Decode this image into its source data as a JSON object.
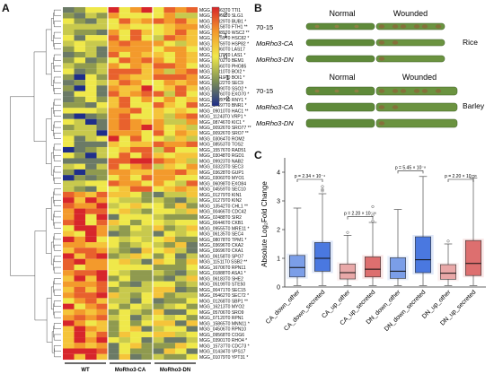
{
  "panels": {
    "a": "A",
    "b": "B",
    "c": "C"
  },
  "heatmap": {
    "colorbar_ticks": [
      "2",
      "1",
      "0",
      "-1",
      "-2"
    ],
    "groups": [
      "WT",
      "MoRho3-CA",
      "MoRho3-DN"
    ],
    "genes": [
      "MGG_08863T0 TTI1",
      "MGG_01466T0 SLG1",
      "MGG_14329T0 BUB1 *",
      "MGG_02158T0 FTH1 **",
      "MGG_15989T0 WSC2 **",
      "MGG_06759T0 HSC82 *",
      "MGG_06759T0 HSP82 *",
      "MGG_02860T0 LAS17",
      "MGG_06370T0 LAS1 *",
      "MGG_01702T0 BEM1",
      "MGG_04660T0 PHO85",
      "MGG_07310T0 BOI2 *",
      "MGG_07310T0 BOI1 *",
      "MGG_00522T0 SEC9",
      "MGG_04090T0 SSO2 *",
      "MGG_01760T0 EXO70 *",
      "MGG_17697T0 RNY1 *",
      "MGG_17697T0 BNR1 *",
      "MGG_09010T0 HAC1 **",
      "MGG_11243T0 VRP1 *",
      "MGG_08746T0 KIC1 *",
      "MGG_00926T0 SRO77 **",
      "MGG_00926T0 SRO7 **",
      "MGG_03064T0 ROM2",
      "MGG_08553T0 TOS2",
      "MGG_15576T0 RAD51",
      "MGG_03048T0 RGD1",
      "MGG_09923T0 NAB2",
      "MGG_03323T0 SEC3",
      "MGG_03628T0 GUP1",
      "MGG_03060T0 MYO1",
      "MGG_06098T0 EXO84",
      "MGG_04559T0 SEC10",
      "MGG_01279T0 KIN1",
      "MGG_01279T0 KIN2",
      "MGG_13542T0 CHL1 **",
      "MGG_00466T0 CDC42",
      "MGG_02488T0 SIR2",
      "MGG_00446T0 CKB1",
      "MGG_09555T0 MRE11 *",
      "MGG_06135T0 SEC4",
      "MGG_08078T0 TPM1 *",
      "MGG_03696T0 CKA2",
      "MGG_03696T0 CKA1",
      "MGG_06158T0 SPO7",
      "MGG_11511T0 SSB2 **",
      "MGG_16706T0 RPN11",
      "MGG_01888T0 ASA1 *",
      "MGG_06183T0 SHE2",
      "MGG_05199T0 STE50",
      "MGG_00471T0 SEC15",
      "MGG_05462T0 SEC72 *",
      "MGG_01268T0 SBP1 **",
      "MGG_16213T0 MYO2",
      "MGG_05706T0 SRO9",
      "MGG_07120T0 RPN1",
      "MGG_15865T0 MNN11 *",
      "MGG_04506T0 RPN10",
      "MGG_09568T0 COG6",
      "MGG_03901T0 RHO4 *",
      "MGG_15737T0 CDC73 *",
      "MGG_01434T0 VPS17",
      "MGG_01079T0 YPT31 *"
    ]
  },
  "leaves": {
    "col_normal": "Normal",
    "col_wounded": "Wounded",
    "rice": {
      "strains": [
        "70-15",
        "MoRho3-CA",
        "MoRho3-DN"
      ],
      "host": "Rice"
    },
    "barley": {
      "strains": [
        "70-15",
        "MoRho3-CA",
        "MoRho3-DN"
      ],
      "host": "Barley"
    }
  },
  "chart_data": {
    "type": "box",
    "ylabel": "Absolute Log₂Fold Change",
    "ylim": [
      0,
      4.5
    ],
    "yticks": [
      0,
      1,
      2,
      3,
      4
    ],
    "categories": [
      "CA_down_other",
      "CA_down_secreted",
      "CA_up_other",
      "CA_up_secreted",
      "DN_down_other",
      "DN_down_secreted",
      "DN_up_other",
      "DN_up_secreted"
    ],
    "colors": [
      "#7b9ee8",
      "#4a78e0",
      "#e9a8a8",
      "#dd6f6f",
      "#7b9ee8",
      "#4a78e0",
      "#e9a8a8",
      "#dd6f6f"
    ],
    "boxes": [
      {
        "whislo": 0.05,
        "q1": 0.35,
        "med": 0.68,
        "q3": 1.1,
        "whishi": 2.75,
        "fliers": []
      },
      {
        "whislo": 0.05,
        "q1": 0.55,
        "med": 1.0,
        "q3": 1.55,
        "whishi": 3.25,
        "fliers": [
          3.35,
          3.4,
          3.5
        ]
      },
      {
        "whislo": 0.05,
        "q1": 0.28,
        "med": 0.5,
        "q3": 0.8,
        "whishi": 1.8,
        "fliers": [
          1.9
        ]
      },
      {
        "whislo": 0.05,
        "q1": 0.35,
        "med": 0.62,
        "q3": 1.05,
        "whishi": 2.25,
        "fliers": [
          2.3,
          2.5,
          2.8
        ]
      },
      {
        "whislo": 0.05,
        "q1": 0.3,
        "med": 0.55,
        "q3": 1.02,
        "whishi": 2.7,
        "fliers": []
      },
      {
        "whislo": 0.05,
        "q1": 0.5,
        "med": 0.95,
        "q3": 1.75,
        "whishi": 3.85,
        "fliers": []
      },
      {
        "whislo": 0.05,
        "q1": 0.27,
        "med": 0.48,
        "q3": 0.78,
        "whishi": 1.5,
        "fliers": [
          1.6
        ]
      },
      {
        "whislo": 0.05,
        "q1": 0.4,
        "med": 0.82,
        "q3": 1.62,
        "whishi": 3.8,
        "fliers": [
          3.85
        ]
      }
    ],
    "annotations": [
      {
        "from": 0,
        "to": 1,
        "y": 3.75,
        "text": "p = 2.34 × 10⁻⁴"
      },
      {
        "from": 2,
        "to": 3,
        "y": 2.45,
        "text": "p = 2.20 × 10⁻¹⁶"
      },
      {
        "from": 4,
        "to": 5,
        "y": 4.05,
        "text": "p = 5.45 × 10⁻⁸"
      },
      {
        "from": 6,
        "to": 7,
        "y": 3.75,
        "text": "p = 2.20 × 10⁻¹⁶"
      }
    ]
  }
}
